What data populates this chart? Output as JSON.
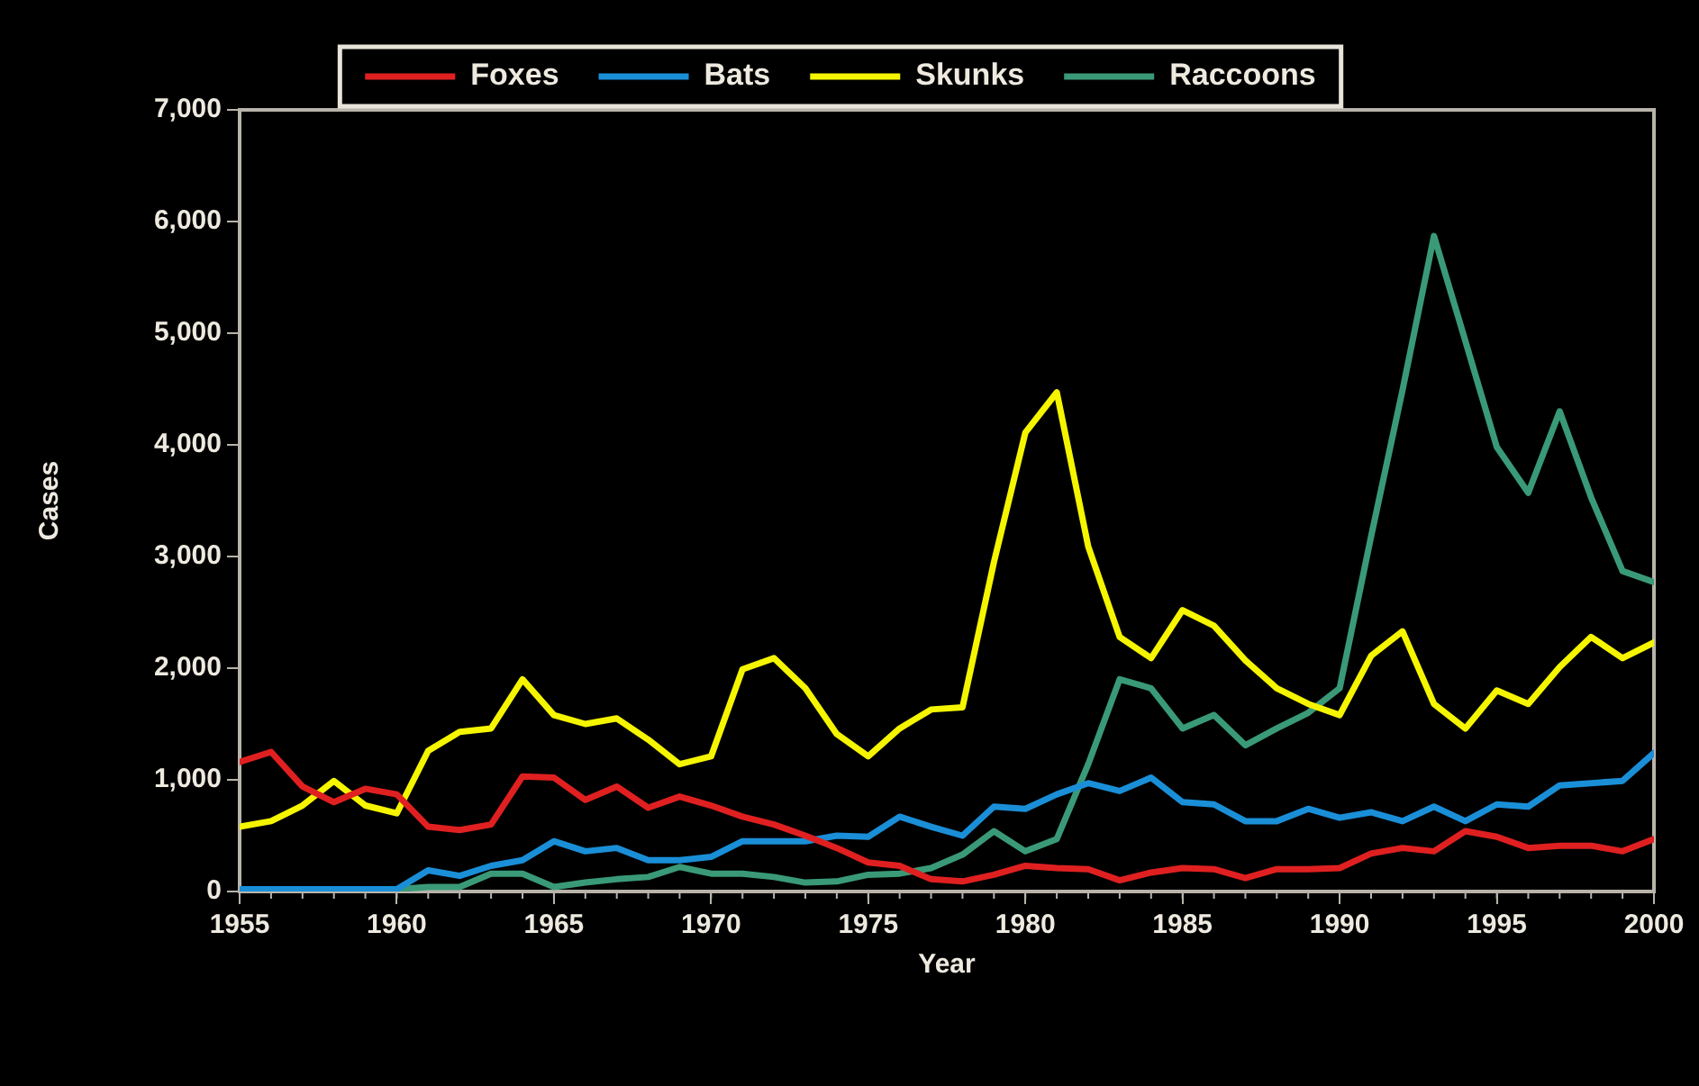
{
  "chart_data": {
    "type": "line",
    "xlabel": "Year",
    "ylabel": "Cases",
    "x": [
      1955,
      1956,
      1957,
      1958,
      1959,
      1960,
      1961,
      1962,
      1963,
      1964,
      1965,
      1966,
      1967,
      1968,
      1969,
      1970,
      1971,
      1972,
      1973,
      1974,
      1975,
      1976,
      1977,
      1978,
      1979,
      1980,
      1981,
      1982,
      1983,
      1984,
      1985,
      1986,
      1987,
      1988,
      1989,
      1990,
      1991,
      1992,
      1993,
      1994,
      1995,
      1996,
      1997,
      1998,
      1999,
      2000
    ],
    "xlim": [
      1955,
      2000
    ],
    "xticks": [
      1955,
      1960,
      1965,
      1970,
      1975,
      1980,
      1985,
      1990,
      1995,
      2000
    ],
    "ylim": [
      0,
      7000
    ],
    "yticks": [
      0,
      {
        "value": 1000,
        "label": "1,000"
      },
      {
        "value": 2000,
        "label": "2,000"
      },
      {
        "value": 3000,
        "label": "3,000"
      },
      {
        "value": 4000,
        "label": "4,000"
      },
      {
        "value": 5000,
        "label": "5,000"
      },
      {
        "value": 6000,
        "label": "6,000"
      },
      {
        "value": 7000,
        "label": "7,000"
      }
    ],
    "grid": false,
    "legend": "top",
    "marker": "none",
    "line_style": "solid",
    "series": [
      {
        "name": "Raccoons",
        "color": "#3a9a78",
        "values": [
          null,
          null,
          null,
          null,
          null,
          20,
          40,
          40,
          160,
          160,
          40,
          80,
          110,
          130,
          220,
          160,
          160,
          130,
          80,
          90,
          150,
          160,
          210,
          330,
          540,
          360,
          470,
          1140,
          1900,
          1820,
          1460,
          1580,
          1310,
          1460,
          1600,
          1820,
          3180,
          4490,
          5870,
          4930,
          3980,
          3570,
          4300,
          3530,
          2870,
          2770
        ]
      },
      {
        "name": "Skunks",
        "color": "#f5f500",
        "values": [
          580,
          630,
          770,
          990,
          770,
          700,
          1260,
          1430,
          1460,
          1900,
          1580,
          1500,
          1550,
          1360,
          1140,
          1210,
          1990,
          2090,
          1820,
          1410,
          1210,
          1460,
          1630,
          1650,
          2950,
          4110,
          4470,
          3090,
          2280,
          2090,
          2520,
          2380,
          2070,
          1820,
          1680,
          1580,
          2110,
          2330,
          1680,
          1460,
          1800,
          1680,
          2010,
          2280,
          2090,
          2230
        ]
      },
      {
        "name": "Bats",
        "color": "#1a8fd8",
        "values": [
          20,
          20,
          20,
          20,
          20,
          20,
          190,
          140,
          230,
          280,
          450,
          360,
          390,
          280,
          280,
          310,
          450,
          450,
          450,
          500,
          490,
          670,
          580,
          500,
          760,
          740,
          870,
          970,
          900,
          1020,
          800,
          780,
          630,
          630,
          740,
          660,
          710,
          630,
          760,
          630,
          780,
          760,
          950,
          970,
          990,
          1240
        ]
      },
      {
        "name": "Foxes",
        "color": "#e02020",
        "values": [
          1160,
          1250,
          940,
          800,
          920,
          870,
          580,
          550,
          600,
          1030,
          1020,
          820,
          940,
          750,
          850,
          770,
          670,
          600,
          500,
          390,
          260,
          230,
          110,
          90,
          150,
          230,
          210,
          200,
          100,
          170,
          210,
          200,
          120,
          200,
          200,
          210,
          340,
          390,
          360,
          540,
          490,
          390,
          410,
          410,
          360,
          470
        ]
      }
    ]
  }
}
